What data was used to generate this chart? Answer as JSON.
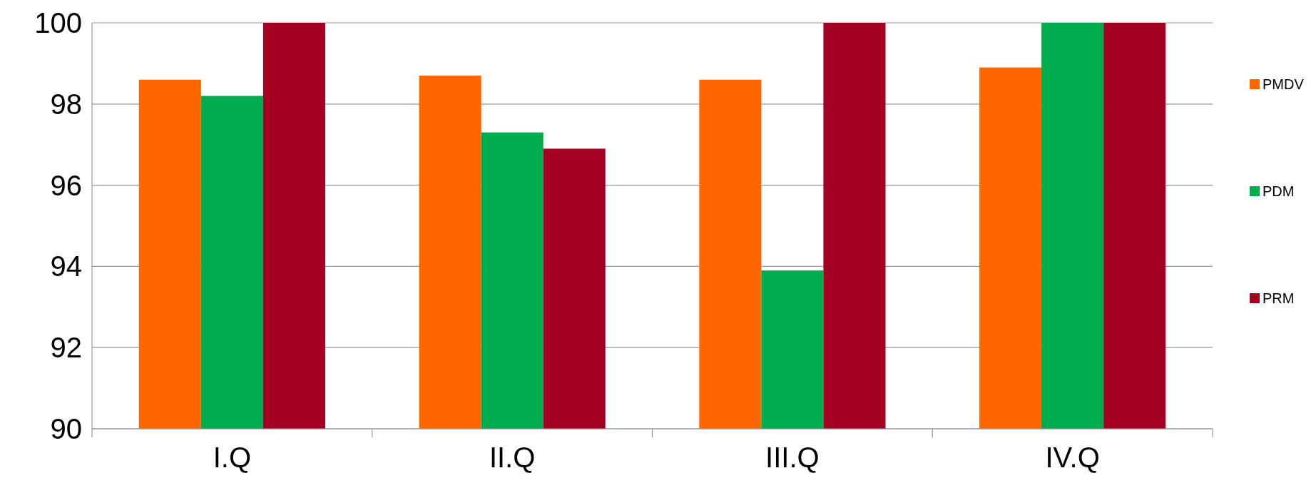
{
  "chart_data": {
    "type": "bar",
    "categories": [
      "I.Q",
      "II.Q",
      "III.Q",
      "IV.Q"
    ],
    "series": [
      {
        "name": "PMDV",
        "color": "#ff6600",
        "values": [
          98.6,
          98.7,
          98.6,
          98.9
        ]
      },
      {
        "name": "PDM",
        "color": "#00ad4e",
        "values": [
          98.2,
          97.3,
          93.9,
          100
        ]
      },
      {
        "name": "PRM",
        "color": "#a50021",
        "values": [
          100,
          96.9,
          100,
          100
        ]
      }
    ],
    "ylim": [
      90,
      100
    ],
    "yticks": [
      90,
      92,
      94,
      96,
      98,
      100
    ],
    "grid": "y",
    "legend": "right"
  }
}
